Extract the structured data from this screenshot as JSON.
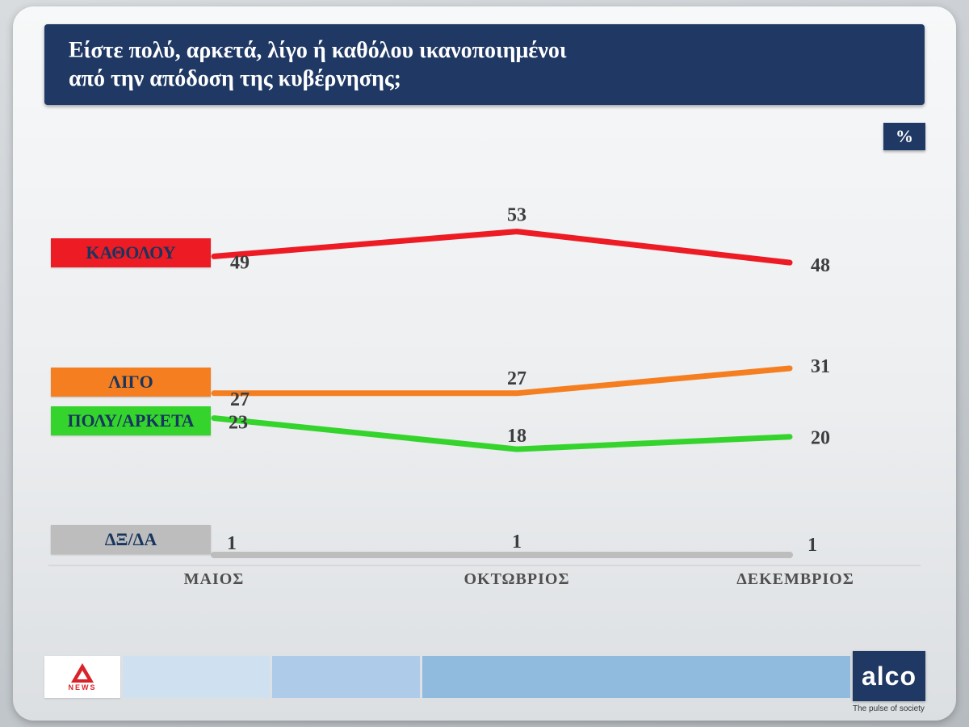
{
  "header": {
    "title_line1": "Είστε πολύ, αρκετά, λίγο ή καθόλου ικανοποιημένοι",
    "title_line2": "από την απόδοση της κυβέρνησης;",
    "unit_label": "%"
  },
  "chart_data": {
    "type": "line",
    "title": "Είστε πολύ, αρκετά, λίγο ή καθόλου ικανοποιημένοι από την απόδοση της κυβέρνησης;",
    "unit": "%",
    "categories": [
      "ΜΑΙΟΣ",
      "ΟΚΤΩΒΡΙΟΣ",
      "ΔΕΚΕΜΒΡΙΟΣ"
    ],
    "series": [
      {
        "name": "ΚΑΘΟΛΟΥ",
        "color": "#ed1b24",
        "values": [
          49,
          53,
          48
        ]
      },
      {
        "name": "ΛΙΓΟ",
        "color": "#f57e20",
        "values": [
          27,
          27,
          31
        ]
      },
      {
        "name": "ΠΟΛΥ/ΑΡΚΕΤΑ",
        "color": "#35d42c",
        "values": [
          23,
          18,
          20
        ]
      },
      {
        "name": "ΔΞ/ΔΑ",
        "color": "#bdbdbd",
        "values": [
          1,
          1,
          1
        ]
      }
    ],
    "ylim": [
      0,
      60
    ],
    "grid": false,
    "legend_position": "left"
  },
  "footer": {
    "alpha_logo_text": "NEWS",
    "alco_logo_text": "alco",
    "alco_tagline": "The pulse of society",
    "segment_colors": [
      "#cfe0f1",
      "#aecce9",
      "#90bade"
    ]
  },
  "colors": {
    "header_bg": "#1f3864"
  }
}
